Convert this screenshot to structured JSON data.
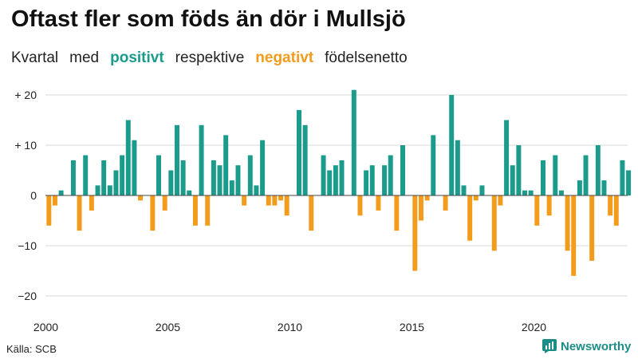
{
  "title": "Oftast fler som föds än dör i Mullsjö",
  "subtitle": {
    "part1": "Kvartal",
    "part2": "med",
    "positive": "positivt",
    "part3": "respektive",
    "negative": "negativt",
    "part4": "födelsenetto"
  },
  "source": "Källa: SCB",
  "brand": "Newsworthy",
  "colors": {
    "positive": "#1a9b8b",
    "negative": "#f39c1c",
    "brand": "#1a8d86"
  },
  "chart_data": {
    "type": "bar",
    "title": "Oftast fler som föds än dör i Mullsjö",
    "xlabel": "",
    "ylabel": "",
    "ylim": [
      -22,
      22
    ],
    "yticks": [
      {
        "value": 20,
        "label": "+ 20"
      },
      {
        "value": 10,
        "label": "+ 10"
      },
      {
        "value": 0,
        "label": "0"
      },
      {
        "value": -10,
        "label": "−10"
      },
      {
        "value": -20,
        "label": "−20"
      }
    ],
    "xticks": [
      {
        "value": 2000,
        "label": "2000"
      },
      {
        "value": 2005,
        "label": "2005"
      },
      {
        "value": 2010,
        "label": "2010"
      },
      {
        "value": 2015,
        "label": "2015"
      },
      {
        "value": 2020,
        "label": "2020"
      }
    ],
    "start_year": 2000,
    "grid": true,
    "series": [
      {
        "name": "Födelsenetto per kvartal",
        "values": [
          -6,
          -2,
          1,
          0,
          7,
          -7,
          8,
          -3,
          2,
          7,
          2,
          5,
          8,
          15,
          11,
          -1,
          0,
          -7,
          8,
          -3,
          5,
          14,
          7,
          1,
          -6,
          14,
          -6,
          7,
          6,
          12,
          3,
          6,
          -2,
          8,
          2,
          11,
          -2,
          -2,
          -1,
          -4,
          0,
          17,
          14,
          -7,
          0,
          8,
          5,
          6,
          7,
          0,
          21,
          -4,
          5,
          6,
          -3,
          6,
          8,
          -7,
          10,
          0,
          -15,
          -5,
          -1,
          12,
          0,
          -3,
          20,
          11,
          2,
          -9,
          -1,
          2,
          0,
          -11,
          -2,
          15,
          6,
          10,
          1,
          1,
          -6,
          7,
          -4,
          8,
          1,
          -11,
          -16,
          3,
          8,
          -13,
          10,
          3,
          -4,
          -6,
          7,
          5
        ]
      }
    ]
  }
}
